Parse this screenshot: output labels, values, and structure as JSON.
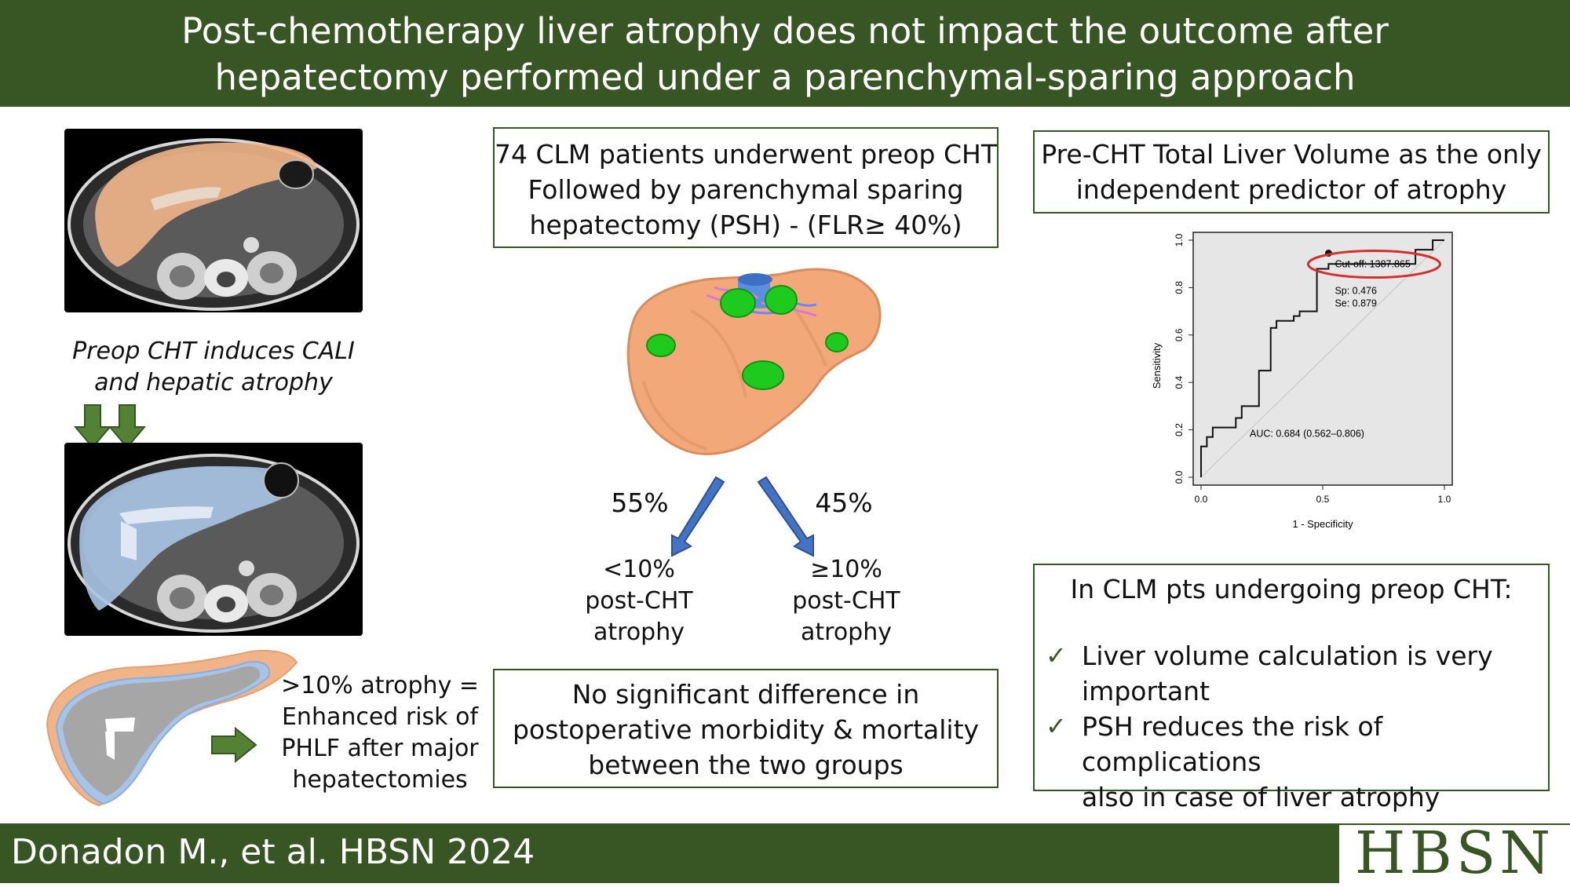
{
  "title": {
    "line1": "Post-chemotherapy liver atrophy does not impact the outcome after",
    "line2": "hepatectomy performed under a parenchymal-sparing approach"
  },
  "left": {
    "ct_label_line1": "Preop CHT induces CALI",
    "ct_label_line2": "and hepatic atrophy",
    "atrophy_note_line1": ">10% atrophy =",
    "atrophy_note_line2": "Enhanced risk of",
    "atrophy_note_line3": "PHLF after major",
    "atrophy_note_line4": "hepatectomies",
    "overlay_colors": {
      "pre": "#f0b488",
      "post": "#a7c4e6",
      "overlap": "#a6a6a6"
    }
  },
  "middle": {
    "top_box_line1": "74 CLM patients underwent preop CHT",
    "top_box_line2": "Followed by parenchymal sparing",
    "top_box_line3": "hepatectomy (PSH) - (FLR≥ 40%)",
    "left_pct": "55%",
    "right_pct": "45%",
    "left_group_line1": "<10%",
    "left_group_line2": "post-CHT",
    "left_group_line3": "atrophy",
    "right_group_line1": "≥10%",
    "right_group_line2": "post-CHT",
    "right_group_line3": "atrophy",
    "bottom_box_line1": "No significant difference in",
    "bottom_box_line2": "postoperative morbidity & mortality",
    "bottom_box_line3": "between the two groups"
  },
  "right": {
    "top_box_line1": "Pre-CHT Total Liver Volume as the only",
    "top_box_line2": "independent predictor of atrophy",
    "conclusion_title": "In CLM pts undergoing preop CHT:",
    "bullet1_line1": "Liver volume calculation is very",
    "bullet1_line2": "important",
    "bullet2_line1": "PSH reduces the risk of complications",
    "bullet2_line2": "also in case of liver atrophy"
  },
  "chart_data": {
    "type": "line",
    "title": "",
    "xlabel": "1 - Specificity",
    "ylabel": "Sensitivity",
    "xlim": [
      0,
      1
    ],
    "ylim": [
      0,
      1
    ],
    "x_ticks": [
      "0.0",
      "0.5",
      "1.0"
    ],
    "y_ticks": [
      "0.0",
      "0.2",
      "0.4",
      "0.6",
      "0.8",
      "1.0"
    ],
    "series": [
      {
        "x": [
          0,
          0,
          0.024,
          0.024,
          0.048,
          0.048,
          0.071,
          0.071,
          0.143,
          0.143,
          0.167,
          0.167,
          0.238,
          0.238,
          0.286,
          0.286,
          0.31,
          0.31,
          0.381,
          0.381,
          0.405,
          0.405,
          0.476,
          0.476,
          0.524,
          0.524,
          0.881,
          0.881,
          0.952,
          0.952,
          1
        ],
        "y": [
          0,
          0.13,
          0.13,
          0.17,
          0.17,
          0.21,
          0.21,
          0.21,
          0.21,
          0.25,
          0.25,
          0.3,
          0.3,
          0.45,
          0.45,
          0.63,
          0.63,
          0.66,
          0.66,
          0.68,
          0.68,
          0.7,
          0.7,
          0.879,
          0.879,
          0.9,
          0.9,
          0.96,
          0.96,
          1.0,
          1.0
        ]
      }
    ],
    "reference_line": {
      "x": [
        0,
        1
      ],
      "y": [
        0,
        1
      ]
    },
    "cutoff_point": {
      "x": 0.524,
      "y": 0.879
    },
    "annotations": {
      "cutoff": "Cut-off: 1387.865",
      "sp": "Sp: 0.476",
      "se": "Se: 0.879",
      "auc": "AUC: 0.684 (0.562–0.806)"
    },
    "highlight_color": "#d32f2f"
  },
  "citation": "Donadon M., et al. HBSN 2024",
  "logo": "HBSN",
  "colors": {
    "brand_green": "#375623",
    "arrow_blue": "#4472c4",
    "arrow_green": "#548235"
  }
}
